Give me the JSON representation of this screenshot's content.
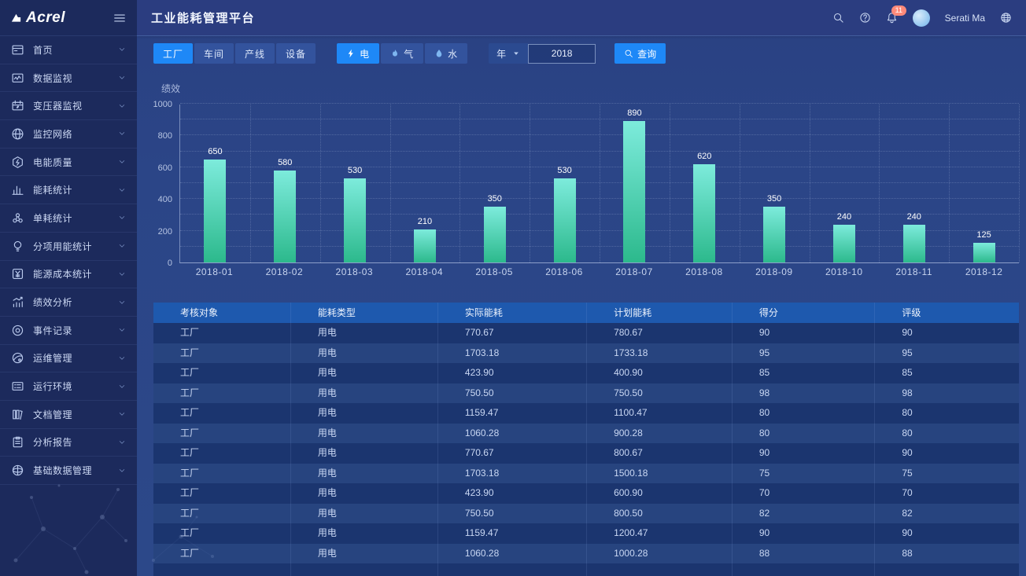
{
  "app": {
    "logo_text": "Acrel",
    "title": "工业能耗管理平台",
    "user_name": "Serati Ma",
    "notification_count": "11"
  },
  "sidebar": {
    "items": [
      {
        "label": "首页",
        "icon": "home-icon"
      },
      {
        "label": "数据监视",
        "icon": "data-monitor-icon"
      },
      {
        "label": "变压器监视",
        "icon": "transformer-monitor-icon"
      },
      {
        "label": "监控网络",
        "icon": "monitor-network-icon"
      },
      {
        "label": "电能质量",
        "icon": "power-quality-icon"
      },
      {
        "label": "能耗统计",
        "icon": "energy-stats-icon"
      },
      {
        "label": "单耗统计",
        "icon": "unit-consumption-icon"
      },
      {
        "label": "分项用能统计",
        "icon": "subitem-energy-icon"
      },
      {
        "label": "能源成本统计",
        "icon": "energy-cost-icon"
      },
      {
        "label": "绩效分析",
        "icon": "performance-analysis-icon"
      },
      {
        "label": "事件记录",
        "icon": "event-record-icon"
      },
      {
        "label": "运维管理",
        "icon": "ops-management-icon"
      },
      {
        "label": "运行环境",
        "icon": "runtime-env-icon"
      },
      {
        "label": "文档管理",
        "icon": "document-management-icon"
      },
      {
        "label": "分析报告",
        "icon": "analysis-report-icon"
      },
      {
        "label": "基础数据管理",
        "icon": "base-data-icon"
      }
    ]
  },
  "filters": {
    "object_tabs": [
      {
        "label": "工厂",
        "active": true
      },
      {
        "label": "车间",
        "active": false
      },
      {
        "label": "产线",
        "active": false
      },
      {
        "label": "设备",
        "active": false
      }
    ],
    "energy_tabs": [
      {
        "label": "电",
        "icon": "bolt-icon",
        "active": true
      },
      {
        "label": "气",
        "icon": "flame-icon",
        "active": false
      },
      {
        "label": "水",
        "icon": "water-drop-icon",
        "active": false
      }
    ],
    "period_label": "年",
    "year_value": "2018",
    "search_label": "查询"
  },
  "chart_data": {
    "type": "bar",
    "title": "绩效",
    "categories": [
      "2018-01",
      "2018-02",
      "2018-03",
      "2018-04",
      "2018-05",
      "2018-06",
      "2018-07",
      "2018-08",
      "2018-09",
      "2018-10",
      "2018-11",
      "2018-12"
    ],
    "values": [
      650,
      580,
      530,
      210,
      350,
      530,
      890,
      620,
      350,
      240,
      240,
      125
    ],
    "xlabel": "",
    "ylabel": "绩效",
    "ylim": [
      0,
      1000
    ],
    "y_ticks": [
      0,
      200,
      400,
      600,
      800,
      1000
    ],
    "grid": "dotted",
    "legend": "none",
    "bar_color_top": "#7debdc",
    "bar_color_bottom": "#2cb98c"
  },
  "table": {
    "headers": [
      "考核对象",
      "能耗类型",
      "实际能耗",
      "计划能耗",
      "得分",
      "评级"
    ],
    "rows": [
      [
        "工厂",
        "用电",
        "770.67",
        "780.67",
        "90",
        "90"
      ],
      [
        "工厂",
        "用电",
        "1703.18",
        "1733.18",
        "95",
        "95"
      ],
      [
        "工厂",
        "用电",
        "423.90",
        "400.90",
        "85",
        "85"
      ],
      [
        "工厂",
        "用电",
        "750.50",
        "750.50",
        "98",
        "98"
      ],
      [
        "工厂",
        "用电",
        "1159.47",
        "1100.47",
        "80",
        "80"
      ],
      [
        "工厂",
        "用电",
        "1060.28",
        "900.28",
        "80",
        "80"
      ],
      [
        "工厂",
        "用电",
        "770.67",
        "800.67",
        "90",
        "90"
      ],
      [
        "工厂",
        "用电",
        "1703.18",
        "1500.18",
        "75",
        "75"
      ],
      [
        "工厂",
        "用电",
        "423.90",
        "600.90",
        "70",
        "70"
      ],
      [
        "工厂",
        "用电",
        "750.50",
        "800.50",
        "82",
        "82"
      ],
      [
        "工厂",
        "用电",
        "1159.47",
        "1200.47",
        "90",
        "90"
      ],
      [
        "工厂",
        "用电",
        "1060.28",
        "1000.28",
        "88",
        "88"
      ]
    ]
  },
  "colors": {
    "accent": "#1e88f7",
    "sidebar_bg": "#1c2a5c",
    "content_bg": "#2b4487",
    "table_header_bg": "#1e59ae",
    "row_odd": "#1b356f",
    "row_even": "#27447f",
    "badge": "#ff8a7a",
    "bar_top": "#7debdc",
    "bar_bottom": "#2cb98c"
  }
}
